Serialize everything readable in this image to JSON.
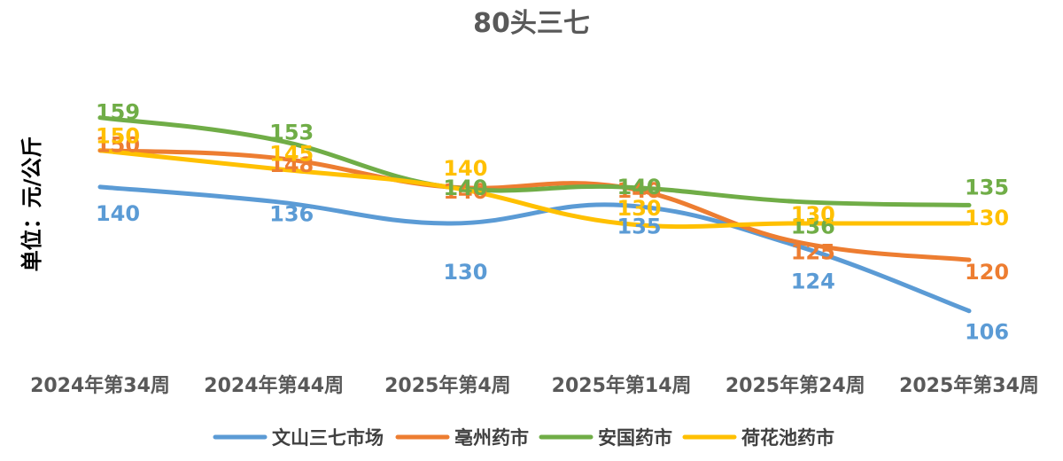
{
  "chart_data": {
    "type": "line",
    "title": "80头三七",
    "ylabel": "单位：元/公斤",
    "xlabel": "",
    "categories": [
      "2024年第34周",
      "2024年第44周",
      "2025年第4周",
      "2025年第14周",
      "2025年第24周",
      "2025年第34周"
    ],
    "ylim": [
      95,
      165
    ],
    "grid": false,
    "legend_position": "bottom",
    "series": [
      {
        "name": "文山三七市场",
        "color": "#5B9BD5",
        "values": [
          140,
          136,
          130,
          135,
          124,
          106
        ]
      },
      {
        "name": "亳州药市",
        "color": "#ED7D31",
        "values": [
          150,
          148,
          140,
          140,
          125,
          120
        ]
      },
      {
        "name": "安国药市",
        "color": "#70AD47",
        "values": [
          159,
          153,
          140,
          140,
          136,
          135
        ]
      },
      {
        "name": "荷花池药市",
        "color": "#FFC000",
        "values": [
          150,
          145,
          140,
          130,
          130,
          130
        ]
      }
    ]
  }
}
